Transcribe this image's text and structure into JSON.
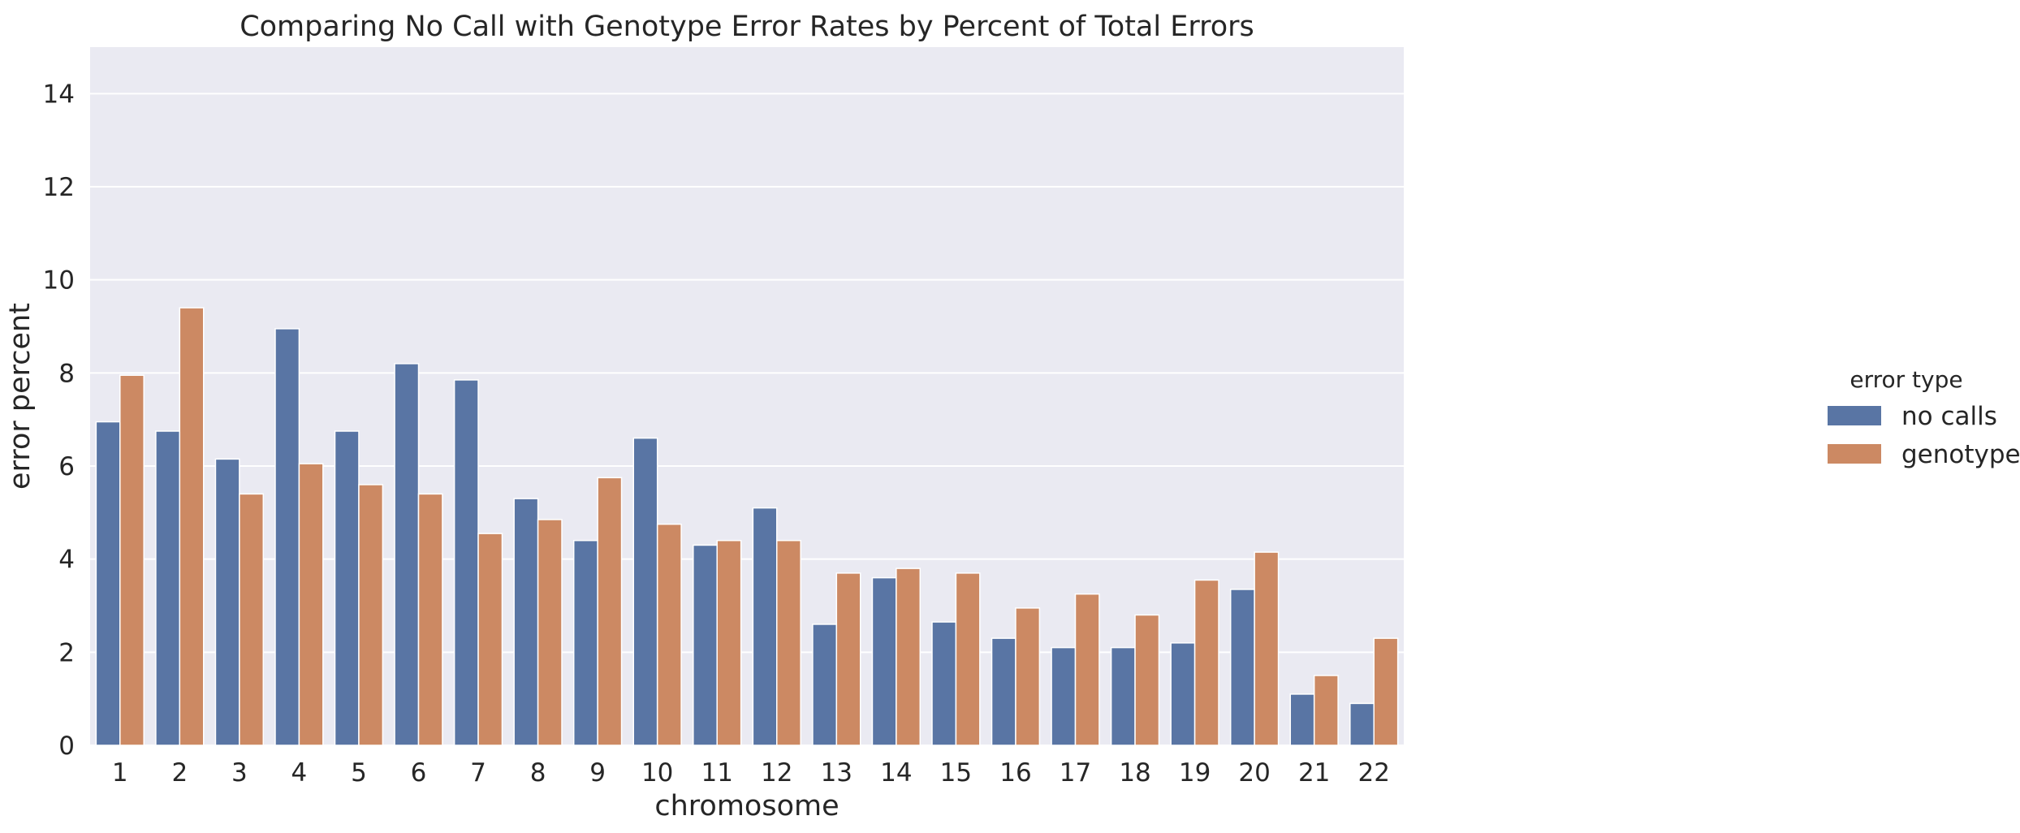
{
  "chart_data": {
    "type": "bar",
    "title": "Comparing No Call with Genotype Error Rates by Percent of Total Errors",
    "xlabel": "chromosome",
    "ylabel": "error percent",
    "ylim": [
      0,
      15
    ],
    "yticks": [
      0,
      2,
      4,
      6,
      8,
      10,
      12,
      14
    ],
    "grid": true,
    "legend": {
      "title": "error type",
      "placement": "right"
    },
    "categories": [
      "1",
      "2",
      "3",
      "4",
      "5",
      "6",
      "7",
      "8",
      "9",
      "10",
      "11",
      "12",
      "13",
      "14",
      "15",
      "16",
      "17",
      "18",
      "19",
      "20",
      "21",
      "22"
    ],
    "series": [
      {
        "name": "no calls",
        "color": "#5975a4",
        "values": [
          6.95,
          6.75,
          6.15,
          8.95,
          6.75,
          8.2,
          7.85,
          5.3,
          4.4,
          6.6,
          4.3,
          5.1,
          2.6,
          3.6,
          2.65,
          2.3,
          2.1,
          2.1,
          2.2,
          3.35,
          1.1,
          0.9
        ]
      },
      {
        "name": "genotype",
        "color": "#cc8963",
        "values": [
          7.95,
          9.4,
          5.4,
          6.05,
          5.6,
          5.4,
          4.55,
          4.85,
          5.75,
          4.75,
          4.4,
          4.4,
          3.7,
          3.8,
          3.7,
          2.95,
          3.25,
          2.8,
          3.55,
          4.15,
          1.5,
          2.3
        ]
      }
    ]
  }
}
